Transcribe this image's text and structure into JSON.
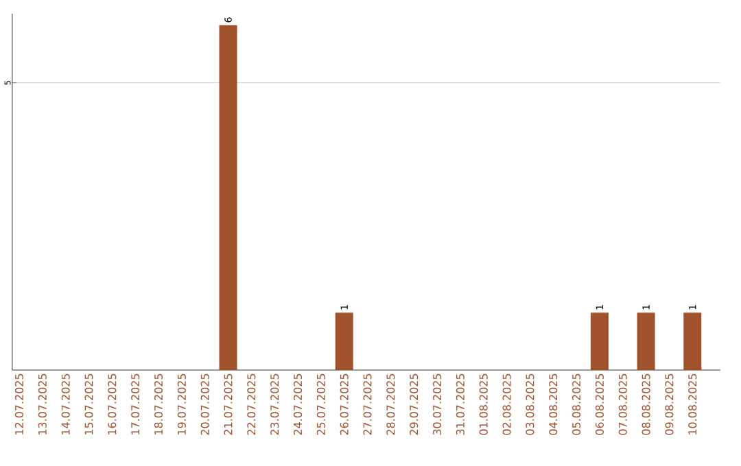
{
  "chart_data": {
    "type": "bar",
    "categories": [
      "12.07.2025",
      "13.07.2025",
      "14.07.2025",
      "15.07.2025",
      "16.07.2025",
      "17.07.2025",
      "18.07.2025",
      "19.07.2025",
      "20.07.2025",
      "21.07.2025",
      "22.07.2025",
      "23.07.2025",
      "24.07.2025",
      "25.07.2025",
      "26.07.2025",
      "27.07.2025",
      "28.07.2025",
      "29.07.2025",
      "30.07.2025",
      "31.07.2025",
      "01.08.2025",
      "02.08.2025",
      "03.08.2025",
      "04.08.2025",
      "05.08.2025",
      "06.08.2025",
      "07.08.2025",
      "08.08.2025",
      "09.08.2025",
      "10.08.2025"
    ],
    "values": [
      0,
      0,
      0,
      0,
      0,
      0,
      0,
      0,
      0,
      6,
      0,
      0,
      0,
      0,
      1,
      0,
      0,
      0,
      0,
      0,
      0,
      0,
      0,
      0,
      0,
      1,
      0,
      1,
      0,
      1
    ],
    "value_labels": [
      null,
      null,
      null,
      null,
      null,
      null,
      null,
      null,
      null,
      "6",
      null,
      null,
      null,
      null,
      "1",
      null,
      null,
      null,
      null,
      null,
      null,
      null,
      null,
      null,
      null,
      "1",
      null,
      "1",
      null,
      "1"
    ],
    "color": "#a0522d",
    "ylim": [
      0,
      6.2
    ],
    "yticks": [
      5
    ],
    "grid": "y"
  }
}
